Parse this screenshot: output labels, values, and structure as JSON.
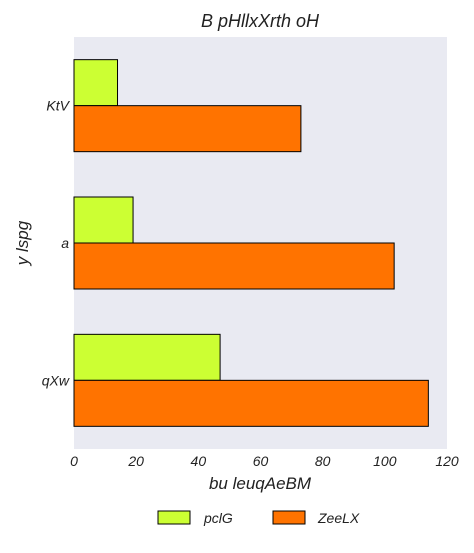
{
  "chart_data": {
    "type": "bar",
    "orientation": "horizontal",
    "title": "B pHllxXrth oH",
    "xlabel": "bu  leuqAeBM",
    "ylabel": "y   lspg",
    "categories": [
      "KtV",
      "a",
      "qXw"
    ],
    "series": [
      {
        "name": "pclG",
        "values": [
          14,
          19,
          47
        ],
        "color": "#ccff33"
      },
      {
        "name": "ZeeLX",
        "values": [
          73,
          103,
          114
        ],
        "color": "#ff7300"
      }
    ],
    "xlim": [
      0,
      120
    ],
    "xticks": [
      "0",
      "20",
      "40",
      "60",
      "80",
      "100",
      "120"
    ],
    "grid": false,
    "background": "#e9eaf2",
    "legend_position": "bottom-center"
  }
}
